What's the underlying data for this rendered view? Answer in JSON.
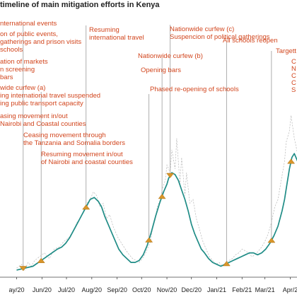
{
  "chart_data": {
    "type": "line",
    "title": "timeline of main mitigation efforts in Kenya",
    "x_tick_labels": [
      "ay/20",
      "Jun/20",
      "Jul/20",
      "Aug/20",
      "Sep/20",
      "Oct/20",
      "Nov/20",
      "Dec/20",
      "Jan/21",
      "Feb/21",
      "Mar/21",
      "Apr/2"
    ],
    "x_ticks_day": [
      0,
      31,
      61,
      92,
      123,
      153,
      184,
      214,
      245,
      276,
      304,
      335
    ],
    "x_range_day": [
      -10,
      345
    ],
    "y_range": [
      0,
      100
    ],
    "grid": false,
    "series": [
      {
        "style": "daily-dashed",
        "x": [
          0,
          6,
          10,
          14,
          18,
          22,
          28,
          34,
          40,
          46,
          52,
          58,
          64,
          70,
          74,
          78,
          82,
          86,
          90,
          94,
          98,
          102,
          106,
          110,
          114,
          118,
          124,
          130,
          136,
          142,
          146,
          150,
          154,
          158,
          160,
          164,
          166,
          170,
          172,
          176,
          178,
          182,
          184,
          188,
          190,
          194,
          196,
          200,
          202,
          206,
          208,
          212,
          216,
          220,
          224,
          228,
          232,
          236,
          240,
          244,
          248,
          252,
          256,
          260,
          264,
          268,
          272,
          276,
          280,
          284,
          288,
          292,
          296,
          300,
          304,
          308,
          312,
          316,
          320,
          324,
          328,
          330,
          334,
          336,
          340,
          344
        ],
        "values": [
          4,
          6,
          3,
          7,
          5,
          8,
          10,
          12,
          9,
          14,
          15,
          18,
          20,
          24,
          28,
          30,
          34,
          38,
          40,
          44,
          42,
          36,
          38,
          30,
          32,
          26,
          20,
          16,
          12,
          9,
          8,
          7,
          9,
          12,
          14,
          18,
          24,
          30,
          36,
          40,
          45,
          50,
          58,
          54,
          66,
          56,
          72,
          48,
          62,
          42,
          54,
          38,
          40,
          30,
          24,
          18,
          14,
          10,
          8,
          6,
          7,
          5,
          7,
          8,
          9,
          11,
          12,
          14,
          13,
          12,
          10,
          11,
          13,
          15,
          18,
          22,
          28,
          36,
          40,
          50,
          60,
          70,
          76,
          84,
          72,
          64
        ]
      },
      {
        "style": "7-day-average",
        "x": [
          0,
          10,
          20,
          30,
          40,
          50,
          55,
          60,
          65,
          70,
          75,
          80,
          85,
          90,
          95,
          100,
          104,
          108,
          112,
          116,
          120,
          125,
          130,
          135,
          140,
          145,
          150,
          155,
          160,
          165,
          170,
          175,
          180,
          184,
          186,
          190,
          194,
          198,
          202,
          206,
          210,
          214,
          218,
          222,
          226,
          230,
          235,
          240,
          245,
          250,
          255,
          260,
          265,
          270,
          275,
          280,
          285,
          290,
          295,
          300,
          305,
          310,
          315,
          320,
          325,
          328,
          331,
          334,
          337,
          340,
          344
        ],
        "values": [
          3,
          4,
          5,
          8,
          11,
          14,
          15,
          17,
          20,
          24,
          28,
          32,
          36,
          40,
          41,
          39,
          36,
          31,
          27,
          23,
          19,
          14,
          11,
          9,
          7,
          7,
          8,
          11,
          16,
          23,
          31,
          38,
          44,
          48,
          51,
          54,
          53,
          50,
          45,
          40,
          34,
          27,
          22,
          18,
          14,
          12,
          9,
          7,
          6,
          5,
          6,
          7,
          8,
          9,
          10,
          11,
          12,
          12,
          11,
          12,
          14,
          17,
          21,
          26,
          34,
          40,
          48,
          56,
          62,
          64,
          60
        ]
      }
    ],
    "annotations": [
      {
        "text": [
          "nternational events"
        ]
      },
      {
        "text": [
          "on of public events,",
          "gatherings and prison visits",
          "schools"
        ]
      },
      {
        "text": [
          "ation of markets",
          "n screening",
          "bars"
        ]
      },
      {
        "text": [
          "wide curfew (a)",
          "ing international travel suspended",
          "ing public transport capacity"
        ]
      },
      {
        "text": [
          "asing movement in/out",
          "Nairobi and Coastal counties"
        ]
      },
      {
        "text": [
          "Ceasing movement through",
          "the Tanzania and Somalia borders"
        ]
      },
      {
        "text": [
          "Resuming movement in/out",
          "of Nairobi and coastal counties"
        ]
      },
      {
        "text": [
          "Resuming",
          "international travel"
        ]
      },
      {
        "text": [
          "Nationwide curfew (b)"
        ]
      },
      {
        "text": [
          "Opening bars"
        ]
      },
      {
        "text": [
          "Phased re-opening of schools"
        ]
      },
      {
        "text": [
          "Nationwide curfew (c)",
          "Suspencion of political gatherings"
        ]
      },
      {
        "text": [
          "All schools reopen"
        ]
      },
      {
        "text": [
          "Targett"
        ]
      },
      {
        "text": [
          "C",
          "N",
          "C",
          "C",
          "S"
        ]
      }
    ],
    "events": [
      {
        "day": 8,
        "direction": "down"
      },
      {
        "day": 30,
        "direction": "up"
      },
      {
        "day": 85,
        "direction": "up"
      },
      {
        "day": 162,
        "direction": "up"
      },
      {
        "day": 178,
        "direction": "up"
      },
      {
        "day": 188,
        "direction": "down"
      },
      {
        "day": 257,
        "direction": "up"
      },
      {
        "day": 312,
        "direction": "up"
      },
      {
        "day": 336,
        "direction": "up"
      }
    ]
  }
}
